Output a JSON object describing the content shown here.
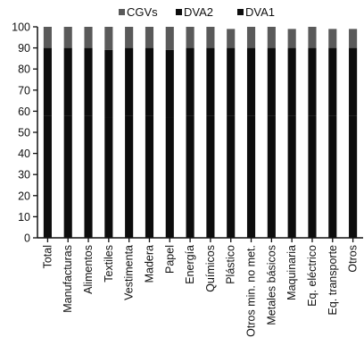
{
  "chart_data": {
    "type": "bar",
    "stacked": true,
    "title": "",
    "xlabel": "",
    "ylabel": "",
    "ylim": [
      0,
      100
    ],
    "yticks": [
      0,
      10,
      20,
      30,
      40,
      50,
      60,
      70,
      80,
      90,
      100
    ],
    "grid": false,
    "legend_position": "top",
    "categories": [
      "Total",
      "Manufacturas",
      "Alimentos",
      "Textiles",
      "Vestimenta",
      "Madera",
      "Papel",
      "Energía",
      "Químicos",
      "Plástico",
      "Otros min. no met.",
      "Metales básicos",
      "Maquinaria",
      "Eq. eléctrico",
      "Eq. transporte",
      "Otros"
    ],
    "series": [
      {
        "name": "DVA1",
        "color": "#0d0d0d",
        "values": [
          58,
          58,
          58,
          57,
          58,
          58,
          57,
          58,
          58,
          58,
          58,
          58,
          58,
          58,
          58,
          58
        ]
      },
      {
        "name": "DVA2",
        "color": "#0d0d0d",
        "values": [
          32,
          32,
          32,
          32,
          32,
          32,
          32,
          32,
          32,
          32,
          32,
          32,
          32,
          32,
          32,
          32
        ]
      },
      {
        "name": "CGVs",
        "color": "#5a5a5a",
        "values": [
          10,
          10,
          10,
          11,
          10,
          10,
          11,
          10,
          10,
          9,
          10,
          10,
          9,
          10,
          9,
          9
        ]
      }
    ],
    "legend": [
      "CGVs",
      "DVA2",
      "DVA1"
    ]
  }
}
